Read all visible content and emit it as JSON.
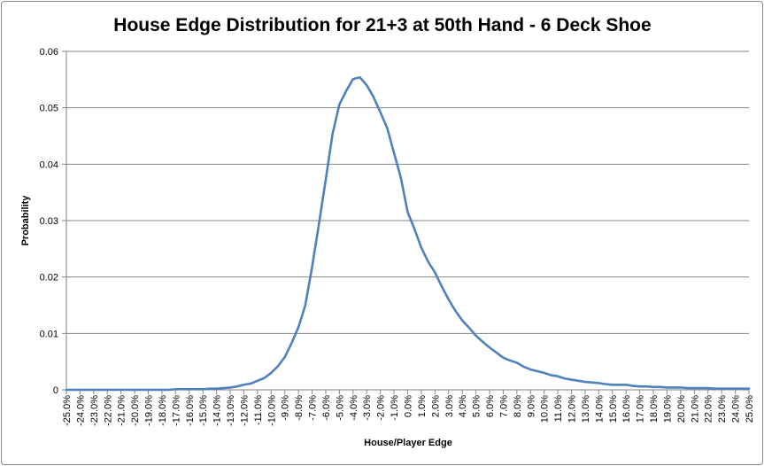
{
  "chart_data": {
    "type": "line",
    "title": "House Edge Distribution for 21+3 at 50th Hand - 6 Deck Shoe",
    "xlabel": "House/Player Edge",
    "ylabel": "Probability",
    "ylim": [
      0,
      0.06
    ],
    "y_ticks": [
      "0",
      "0.01",
      "0.02",
      "0.03",
      "0.04",
      "0.05",
      "0.06"
    ],
    "x_ticks": [
      "-25.0%",
      "-24.0%",
      "-23.0%",
      "-22.0%",
      "-21.0%",
      "-20.0%",
      "-19.0%",
      "-18.0%",
      "-17.0%",
      "-16.0%",
      "-15.0%",
      "-14.0%",
      "-13.0%",
      "-12.0%",
      "-11.0%",
      "-10.0%",
      "-9.0%",
      "-8.0%",
      "-7.0%",
      "-6.0%",
      "-5.0%",
      "-4.0%",
      "-3.0%",
      "-2.0%",
      "-1.0%",
      "0.0%",
      "1.0%",
      "2.0%",
      "3.0%",
      "4.0%",
      "5.0%",
      "6.0%",
      "7.0%",
      "8.0%",
      "9.0%",
      "10.0%",
      "11.0%",
      "12.0%",
      "13.0%",
      "14.0%",
      "15.0%",
      "16.0%",
      "17.0%",
      "18.0%",
      "19.0%",
      "20.0%",
      "21.0%",
      "22.0%",
      "23.0%",
      "24.0%",
      "25.0%"
    ],
    "x": [
      -25,
      -24.5,
      -24,
      -23.5,
      -23,
      -22.5,
      -22,
      -21.5,
      -21,
      -20.5,
      -20,
      -19.5,
      -19,
      -18.5,
      -18,
      -17.5,
      -17,
      -16.5,
      -16,
      -15.5,
      -15,
      -14.5,
      -14,
      -13.5,
      -13,
      -12.5,
      -12,
      -11.5,
      -11,
      -10.5,
      -10,
      -9.5,
      -9,
      -8.5,
      -8,
      -7.5,
      -7,
      -6.5,
      -6,
      -5.5,
      -5,
      -4.5,
      -4,
      -3.5,
      -3,
      -2.5,
      -2,
      -1.5,
      -1,
      -0.5,
      0,
      0.5,
      1,
      1.5,
      2,
      2.5,
      3,
      3.5,
      4,
      4.5,
      5,
      5.5,
      6,
      6.5,
      7,
      7.5,
      8,
      8.5,
      9,
      9.5,
      10,
      10.5,
      11,
      11.5,
      12,
      12.5,
      13,
      13.5,
      14,
      14.5,
      15,
      15.5,
      16,
      16.5,
      17,
      17.5,
      18,
      18.5,
      19,
      19.5,
      20,
      20.5,
      21,
      21.5,
      22,
      22.5,
      23,
      23.5,
      24,
      24.5,
      25
    ],
    "series": [
      {
        "color": "#4f81bd",
        "values": [
          0,
          0,
          0,
          0,
          0,
          0,
          0,
          0,
          0,
          0,
          0,
          0,
          0,
          0,
          0,
          0,
          0.0001,
          0.0001,
          0.0001,
          0.0001,
          0.0001,
          0.0002,
          0.0002,
          0.0003,
          0.0004,
          0.0006,
          0.0009,
          0.0011,
          0.0016,
          0.0021,
          0.003,
          0.0042,
          0.0058,
          0.0083,
          0.0111,
          0.015,
          0.0218,
          0.0294,
          0.0373,
          0.0454,
          0.0506,
          0.053,
          0.0551,
          0.0554,
          0.054,
          0.0519,
          0.0492,
          0.0464,
          0.042,
          0.0376,
          0.0315,
          0.0285,
          0.0252,
          0.0227,
          0.0208,
          0.0183,
          0.016,
          0.014,
          0.0123,
          0.011,
          0.0096,
          0.0085,
          0.0075,
          0.0066,
          0.0057,
          0.0052,
          0.0048,
          0.0041,
          0.0036,
          0.0033,
          0.003,
          0.0026,
          0.0024,
          0.002,
          0.0018,
          0.0016,
          0.0014,
          0.0013,
          0.0012,
          0.001,
          0.0009,
          0.0009,
          0.0009,
          0.0007,
          0.0006,
          0.0006,
          0.0005,
          0.0005,
          0.0004,
          0.0004,
          0.0004,
          0.0003,
          0.0003,
          0.0003,
          0.0003,
          0.0002,
          0.0002,
          0.0002,
          0.0002,
          0.0002,
          0.0002
        ]
      }
    ],
    "grid": true
  }
}
